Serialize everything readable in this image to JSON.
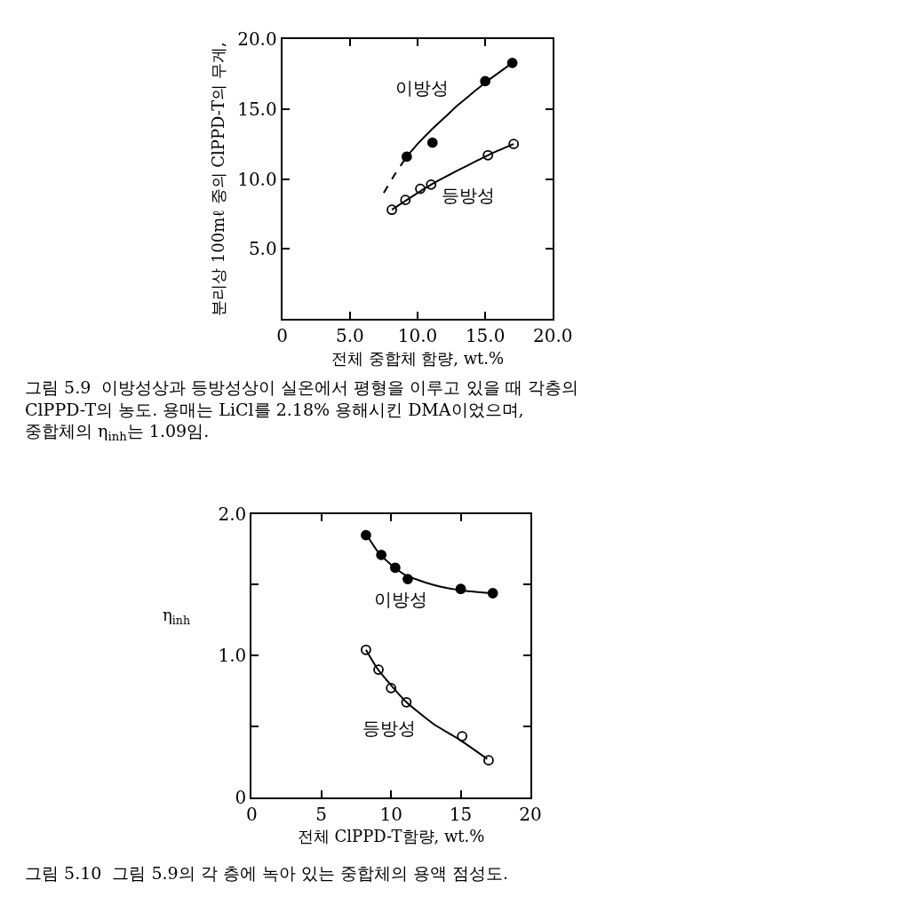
{
  "chart_data": [
    {
      "type": "scatter",
      "xlabel": "전체 중합체 함량, wt.%",
      "ylabel": "분리상 100mℓ 중의 ClPPD-T의 무게,",
      "xlim": [
        0,
        20
      ],
      "ylim": [
        0,
        20
      ],
      "xticks": [
        0,
        {
          "value": 5,
          "label": "5.0"
        },
        {
          "value": 10,
          "label": "10.0"
        },
        {
          "value": 15,
          "label": "15.0"
        },
        {
          "value": 20,
          "label": "20.0"
        }
      ],
      "yticks": [
        {
          "value": 5,
          "label": "5.0"
        },
        {
          "value": 10,
          "label": "10.0"
        },
        {
          "value": 15,
          "label": "15.0"
        },
        {
          "value": 20,
          "label": "20.0"
        }
      ],
      "marker": "circle",
      "legend": false,
      "series": [
        {
          "name": "이방성",
          "color": "#000000",
          "x": [
            9.2,
            11.1,
            15.0,
            17.0
          ],
          "values": [
            11.6,
            12.6,
            17.0,
            18.3
          ]
        },
        {
          "name": "등방성",
          "color": "#ffffff",
          "x": [
            8.1,
            9.1,
            10.2,
            11.0,
            15.2,
            17.1
          ],
          "values": [
            7.8,
            8.5,
            9.3,
            9.6,
            11.7,
            12.5
          ]
        },
        {
          "type": "line",
          "marker": "none",
          "color": "#000000",
          "line_style": "solid",
          "x": [
            9.2,
            10,
            11,
            12,
            13,
            14,
            15,
            16,
            17
          ],
          "values": [
            11.6,
            12.5,
            13.5,
            14.4,
            15.3,
            16.1,
            16.9,
            17.6,
            18.3
          ]
        },
        {
          "type": "line",
          "marker": "none",
          "color": "#000000",
          "line_style": "dashed",
          "x": [
            7.5,
            8.3,
            9.2
          ],
          "values": [
            9.0,
            10.3,
            11.6
          ]
        },
        {
          "type": "line",
          "marker": "none",
          "color": "#000000",
          "line_style": "solid",
          "x": [
            8.1,
            11.0,
            15.2,
            17.1
          ],
          "values": [
            7.8,
            9.6,
            11.7,
            12.5
          ]
        }
      ],
      "annotations": [
        "그림 5.9  이방성상과 등방성상이 실온에서 평형을 이루고 있을 때 각층의\nClPPD-T의 농도. 용매는 LiCl를 2.18% 용해시킨 DMA이었으며,\n중합체의 η$_{inh}$는 1.09임."
      ]
    },
    {
      "type": "scatter",
      "xlabel": "전체 ClPPD-T함량, wt.%",
      "ylabel": "η$_{inh}$",
      "xlim": [
        0,
        20
      ],
      "ylim": [
        0,
        2
      ],
      "xticks": [
        0,
        5,
        10,
        15,
        20
      ],
      "yticks": [
        0,
        {
          "value": 0.5,
          "label": null
        },
        {
          "value": 1,
          "label": "1.0"
        },
        {
          "value": 1.5,
          "label": null
        },
        {
          "value": 2,
          "label": "2.0"
        }
      ],
      "marker": "circle",
      "legend": false,
      "series": [
        {
          "name": "이방성",
          "color": "#000000",
          "x": [
            8.2,
            9.3,
            10.3,
            11.2,
            15.0,
            17.3
          ],
          "values": [
            1.85,
            1.71,
            1.62,
            1.54,
            1.47,
            1.44
          ]
        },
        {
          "name": "등방성",
          "color": "#ffffff",
          "x": [
            8.2,
            9.1,
            10.0,
            11.1,
            15.1,
            17.0
          ],
          "values": [
            1.04,
            0.9,
            0.77,
            0.67,
            0.43,
            0.26
          ]
        },
        {
          "type": "line",
          "marker": "none",
          "color": "#000000",
          "line_style": "solid",
          "x": [
            8.2,
            9,
            10,
            11,
            13,
            15,
            17.2
          ],
          "values": [
            1.86,
            1.74,
            1.64,
            1.57,
            1.5,
            1.46,
            1.44
          ]
        },
        {
          "type": "line",
          "marker": "none",
          "color": "#000000",
          "line_style": "solid",
          "x": [
            8.2,
            9,
            10,
            11,
            13,
            15,
            16.9
          ],
          "values": [
            1.04,
            0.91,
            0.79,
            0.68,
            0.52,
            0.4,
            0.27
          ]
        }
      ],
      "annotations": [
        "그림 5.10  그림 5.9의 각 층에 녹아 있는 중합체의 용액 점성도."
      ]
    }
  ]
}
